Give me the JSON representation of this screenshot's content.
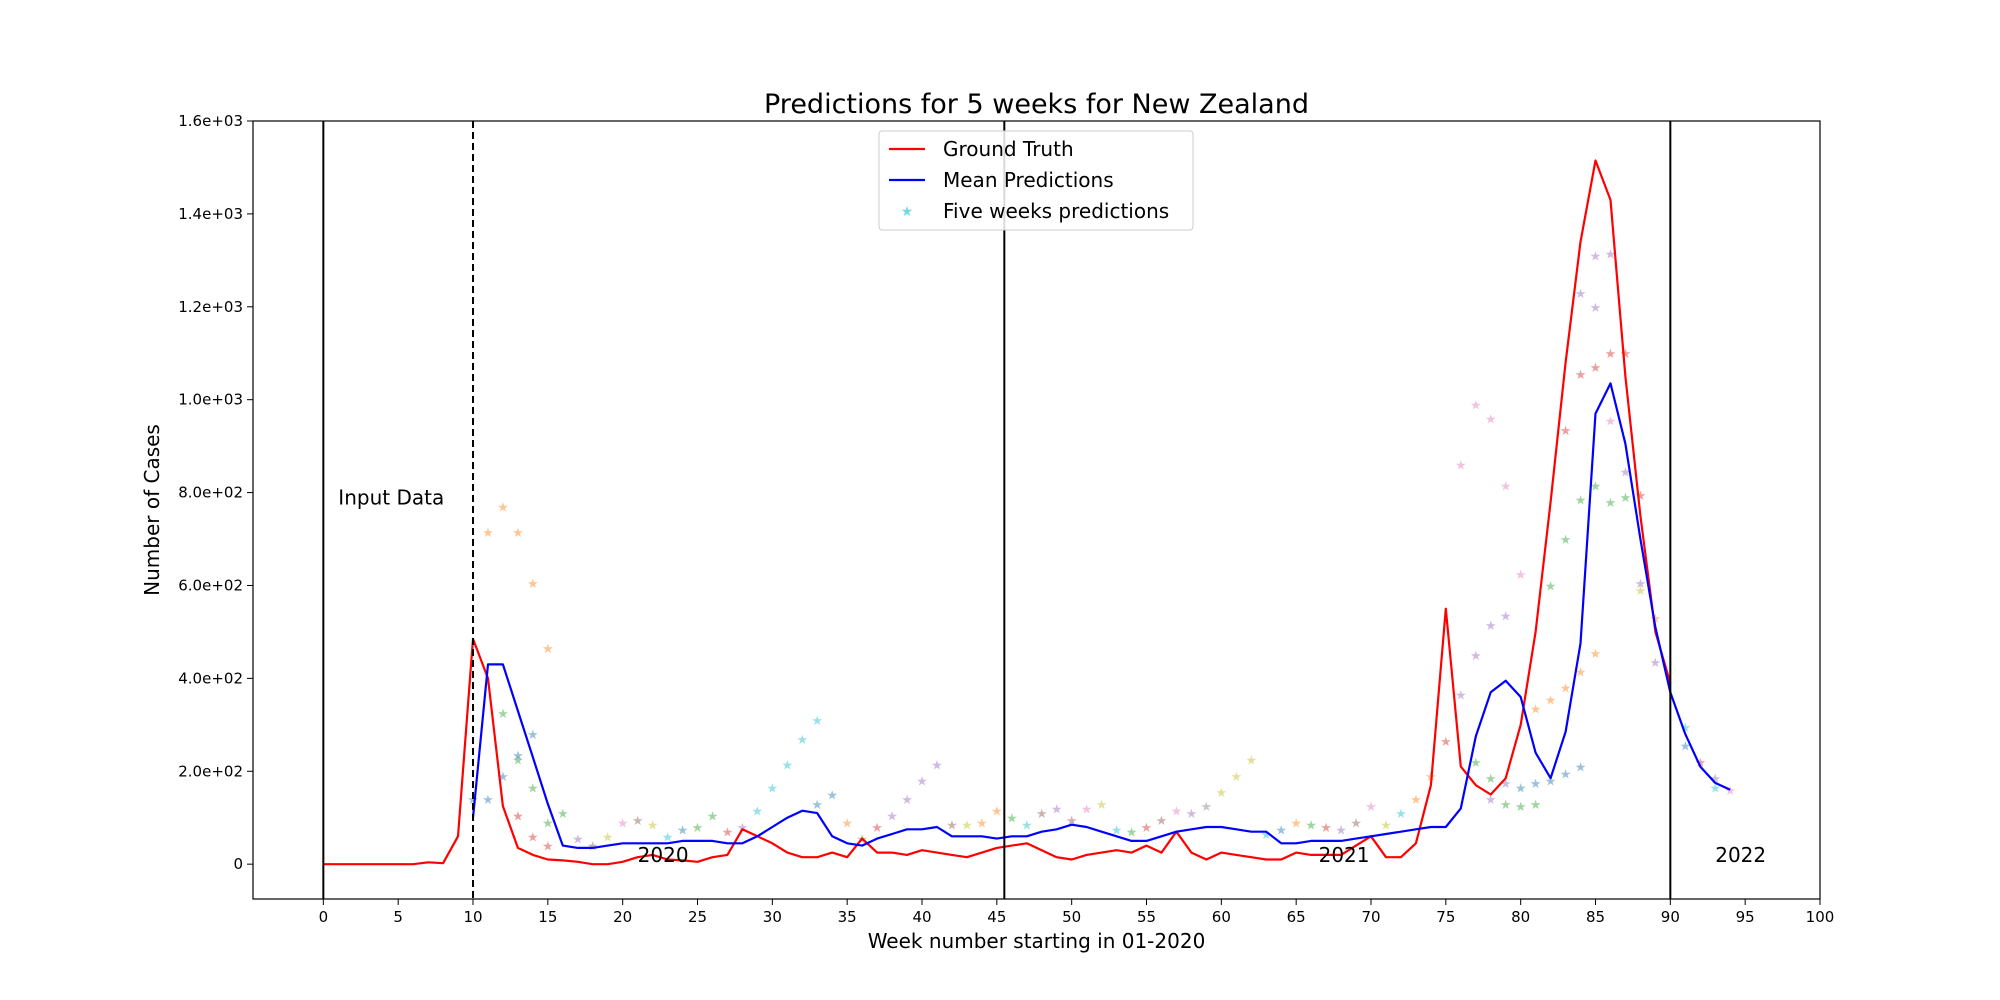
{
  "chart_data": {
    "type": "line",
    "title": "Predictions for 5 weeks for New Zealand",
    "xlabel": "Week number starting in 01-2020",
    "ylabel": "Number of Cases",
    "xlim": [
      -4.7,
      100
    ],
    "ylim": [
      -75,
      1600
    ],
    "x_ticks": [
      0,
      5,
      10,
      15,
      20,
      25,
      30,
      35,
      40,
      45,
      50,
      55,
      60,
      65,
      70,
      75,
      80,
      85,
      90,
      95,
      100
    ],
    "y_ticks": [
      {
        "value": 0,
        "label": "0"
      },
      {
        "value": 200,
        "label": "2.0e+02"
      },
      {
        "value": 400,
        "label": "4.0e+02"
      },
      {
        "value": 600,
        "label": "6.0e+02"
      },
      {
        "value": 800,
        "label": "8.0e+02"
      },
      {
        "value": 1000,
        "label": "1.0e+03"
      },
      {
        "value": 1200,
        "label": "1.2e+03"
      },
      {
        "value": 1400,
        "label": "1.4e+03"
      },
      {
        "value": 1600,
        "label": "1.6e+03"
      }
    ],
    "grid": false,
    "legend": "upper-center",
    "series": [
      {
        "name": "Ground Truth",
        "color": "#ff0000",
        "x": [
          0,
          1,
          2,
          3,
          4,
          5,
          6,
          7,
          8,
          9,
          10,
          11,
          12,
          13,
          14,
          15,
          16,
          17,
          18,
          19,
          20,
          21,
          22,
          23,
          24,
          25,
          26,
          27,
          28,
          29,
          30,
          31,
          32,
          33,
          34,
          35,
          36,
          37,
          38,
          39,
          40,
          41,
          42,
          43,
          44,
          45,
          46,
          47,
          48,
          49,
          50,
          51,
          52,
          53,
          54,
          55,
          56,
          57,
          58,
          59,
          60,
          61,
          62,
          63,
          64,
          65,
          66,
          67,
          68,
          69,
          70,
          71,
          72,
          73,
          74,
          75,
          76,
          77,
          78,
          79,
          80,
          81,
          82,
          83,
          84,
          85,
          86,
          87,
          88,
          89,
          90
        ],
        "y": [
          0,
          0,
          0,
          0,
          0,
          0,
          0,
          4,
          2,
          60,
          485,
          400,
          125,
          35,
          20,
          10,
          8,
          5,
          0,
          0,
          5,
          15,
          20,
          10,
          8,
          5,
          15,
          20,
          75,
          60,
          45,
          25,
          15,
          15,
          25,
          15,
          55,
          25,
          25,
          20,
          30,
          25,
          20,
          15,
          25,
          35,
          40,
          45,
          30,
          15,
          10,
          20,
          25,
          30,
          25,
          40,
          25,
          70,
          25,
          10,
          25,
          20,
          15,
          10,
          10,
          25,
          20,
          20,
          20,
          40,
          60,
          15,
          15,
          45,
          170,
          550,
          210,
          170,
          150,
          185,
          300,
          500,
          780,
          1080,
          1340,
          1515,
          1430,
          1050,
          750,
          500,
          390
        ]
      },
      {
        "name": "Mean Predictions",
        "color": "#0000ff",
        "x": [
          10,
          11,
          12,
          13,
          14,
          15,
          16,
          17,
          18,
          19,
          20,
          21,
          22,
          23,
          24,
          25,
          26,
          27,
          28,
          29,
          30,
          31,
          32,
          33,
          34,
          35,
          36,
          37,
          38,
          39,
          40,
          41,
          42,
          43,
          44,
          45,
          46,
          47,
          48,
          49,
          50,
          51,
          52,
          53,
          54,
          55,
          56,
          57,
          58,
          59,
          60,
          61,
          62,
          63,
          64,
          65,
          66,
          67,
          68,
          69,
          70,
          71,
          72,
          73,
          74,
          75,
          76,
          77,
          78,
          79,
          80,
          81,
          82,
          83,
          84,
          85,
          86,
          87,
          88,
          89,
          90,
          91,
          92,
          93,
          94
        ],
        "y": [
          100,
          430,
          430,
          330,
          230,
          130,
          40,
          35,
          35,
          40,
          45,
          45,
          45,
          45,
          50,
          50,
          50,
          45,
          45,
          60,
          80,
          100,
          115,
          110,
          60,
          45,
          40,
          55,
          65,
          75,
          75,
          80,
          60,
          60,
          60,
          55,
          60,
          60,
          70,
          75,
          85,
          80,
          70,
          60,
          50,
          50,
          60,
          70,
          75,
          80,
          80,
          75,
          70,
          70,
          45,
          45,
          50,
          50,
          50,
          55,
          60,
          65,
          70,
          75,
          80,
          80,
          120,
          275,
          370,
          395,
          360,
          240,
          185,
          285,
          475,
          970,
          1035,
          905,
          700,
          510,
          370,
          280,
          210,
          175,
          160
        ]
      }
    ],
    "scatter": {
      "name": "Five weeks predictions",
      "points": [
        {
          "x": 11,
          "y": 715,
          "color": "#ff7f0e"
        },
        {
          "x": 12,
          "y": 770,
          "color": "#ff7f0e"
        },
        {
          "x": 13,
          "y": 715,
          "color": "#ff7f0e"
        },
        {
          "x": 14,
          "y": 605,
          "color": "#ff7f0e"
        },
        {
          "x": 15,
          "y": 465,
          "color": "#ff7f0e"
        },
        {
          "x": 12,
          "y": 325,
          "color": "#2ca02c"
        },
        {
          "x": 13,
          "y": 225,
          "color": "#2ca02c"
        },
        {
          "x": 14,
          "y": 165,
          "color": "#2ca02c"
        },
        {
          "x": 15,
          "y": 90,
          "color": "#2ca02c"
        },
        {
          "x": 16,
          "y": 110,
          "color": "#2ca02c"
        },
        {
          "x": 10,
          "y": 140,
          "color": "#1f77b4"
        },
        {
          "x": 11,
          "y": 140,
          "color": "#1f77b4"
        },
        {
          "x": 12,
          "y": 190,
          "color": "#1f77b4"
        },
        {
          "x": 13,
          "y": 235,
          "color": "#1f77b4"
        },
        {
          "x": 14,
          "y": 280,
          "color": "#1f77b4"
        },
        {
          "x": 13,
          "y": 105,
          "color": "#d62728"
        },
        {
          "x": 14,
          "y": 60,
          "color": "#d62728"
        },
        {
          "x": 15,
          "y": 40,
          "color": "#d62728"
        },
        {
          "x": 17,
          "y": 55,
          "color": "#9467bd"
        },
        {
          "x": 18,
          "y": 40,
          "color": "#8c564b"
        },
        {
          "x": 19,
          "y": 60,
          "color": "#bcbd22"
        },
        {
          "x": 20,
          "y": 90,
          "color": "#e377c2"
        },
        {
          "x": 21,
          "y": 95,
          "color": "#8c564b"
        },
        {
          "x": 22,
          "y": 85,
          "color": "#bcbd22"
        },
        {
          "x": 23,
          "y": 60,
          "color": "#17becf"
        },
        {
          "x": 24,
          "y": 75,
          "color": "#1f77b4"
        },
        {
          "x": 25,
          "y": 80,
          "color": "#2ca02c"
        },
        {
          "x": 26,
          "y": 105,
          "color": "#2ca02c"
        },
        {
          "x": 27,
          "y": 70,
          "color": "#d62728"
        },
        {
          "x": 28,
          "y": 80,
          "color": "#9467bd"
        },
        {
          "x": 29,
          "y": 115,
          "color": "#17becf"
        },
        {
          "x": 30,
          "y": 165,
          "color": "#17becf"
        },
        {
          "x": 31,
          "y": 215,
          "color": "#17becf"
        },
        {
          "x": 32,
          "y": 270,
          "color": "#17becf"
        },
        {
          "x": 33,
          "y": 310,
          "color": "#17becf"
        },
        {
          "x": 33,
          "y": 130,
          "color": "#1f77b4"
        },
        {
          "x": 34,
          "y": 150,
          "color": "#1f77b4"
        },
        {
          "x": 35,
          "y": 90,
          "color": "#ff7f0e"
        },
        {
          "x": 36,
          "y": 55,
          "color": "#2ca02c"
        },
        {
          "x": 37,
          "y": 80,
          "color": "#d62728"
        },
        {
          "x": 38,
          "y": 105,
          "color": "#9467bd"
        },
        {
          "x": 39,
          "y": 140,
          "color": "#9467bd"
        },
        {
          "x": 40,
          "y": 180,
          "color": "#9467bd"
        },
        {
          "x": 41,
          "y": 215,
          "color": "#9467bd"
        },
        {
          "x": 42,
          "y": 85,
          "color": "#8c564b"
        },
        {
          "x": 43,
          "y": 85,
          "color": "#bcbd22"
        },
        {
          "x": 44,
          "y": 90,
          "color": "#ff7f0e"
        },
        {
          "x": 45,
          "y": 115,
          "color": "#ff7f0e"
        },
        {
          "x": 46,
          "y": 100,
          "color": "#2ca02c"
        },
        {
          "x": 47,
          "y": 85,
          "color": "#17becf"
        },
        {
          "x": 48,
          "y": 110,
          "color": "#8c564b"
        },
        {
          "x": 49,
          "y": 120,
          "color": "#9467bd"
        },
        {
          "x": 50,
          "y": 95,
          "color": "#8c564b"
        },
        {
          "x": 51,
          "y": 120,
          "color": "#e377c2"
        },
        {
          "x": 52,
          "y": 130,
          "color": "#bcbd22"
        },
        {
          "x": 53,
          "y": 75,
          "color": "#17becf"
        },
        {
          "x": 54,
          "y": 70,
          "color": "#2ca02c"
        },
        {
          "x": 55,
          "y": 80,
          "color": "#d62728"
        },
        {
          "x": 56,
          "y": 95,
          "color": "#8c564b"
        },
        {
          "x": 57,
          "y": 115,
          "color": "#e377c2"
        },
        {
          "x": 58,
          "y": 110,
          "color": "#9467bd"
        },
        {
          "x": 59,
          "y": 125,
          "color": "#7f7f7f"
        },
        {
          "x": 60,
          "y": 155,
          "color": "#bcbd22"
        },
        {
          "x": 61,
          "y": 190,
          "color": "#bcbd22"
        },
        {
          "x": 62,
          "y": 225,
          "color": "#bcbd22"
        },
        {
          "x": 63,
          "y": 65,
          "color": "#17becf"
        },
        {
          "x": 64,
          "y": 75,
          "color": "#1f77b4"
        },
        {
          "x": 65,
          "y": 90,
          "color": "#ff7f0e"
        },
        {
          "x": 66,
          "y": 85,
          "color": "#2ca02c"
        },
        {
          "x": 67,
          "y": 80,
          "color": "#d62728"
        },
        {
          "x": 68,
          "y": 75,
          "color": "#9467bd"
        },
        {
          "x": 69,
          "y": 90,
          "color": "#8c564b"
        },
        {
          "x": 70,
          "y": 125,
          "color": "#e377c2"
        },
        {
          "x": 71,
          "y": 85,
          "color": "#bcbd22"
        },
        {
          "x": 72,
          "y": 110,
          "color": "#17becf"
        },
        {
          "x": 73,
          "y": 140,
          "color": "#ff7f0e"
        },
        {
          "x": 74,
          "y": 190,
          "color": "#ff7f0e"
        },
        {
          "x": 75,
          "y": 265,
          "color": "#d62728"
        },
        {
          "x": 76,
          "y": 860,
          "color": "#e377c2"
        },
        {
          "x": 77,
          "y": 990,
          "color": "#e377c2"
        },
        {
          "x": 78,
          "y": 960,
          "color": "#e377c2"
        },
        {
          "x": 79,
          "y": 815,
          "color": "#e377c2"
        },
        {
          "x": 80,
          "y": 625,
          "color": "#e377c2"
        },
        {
          "x": 76,
          "y": 365,
          "color": "#9467bd"
        },
        {
          "x": 77,
          "y": 450,
          "color": "#9467bd"
        },
        {
          "x": 78,
          "y": 515,
          "color": "#9467bd"
        },
        {
          "x": 79,
          "y": 535,
          "color": "#9467bd"
        },
        {
          "x": 77,
          "y": 220,
          "color": "#2ca02c"
        },
        {
          "x": 78,
          "y": 185,
          "color": "#2ca02c"
        },
        {
          "x": 79,
          "y": 130,
          "color": "#2ca02c"
        },
        {
          "x": 80,
          "y": 125,
          "color": "#2ca02c"
        },
        {
          "x": 81,
          "y": 130,
          "color": "#2ca02c"
        },
        {
          "x": 78,
          "y": 140,
          "color": "#9467bd"
        },
        {
          "x": 79,
          "y": 175,
          "color": "#9467bd"
        },
        {
          "x": 80,
          "y": 165,
          "color": "#1f77b4"
        },
        {
          "x": 81,
          "y": 175,
          "color": "#1f77b4"
        },
        {
          "x": 82,
          "y": 180,
          "color": "#1f77b4"
        },
        {
          "x": 83,
          "y": 195,
          "color": "#1f77b4"
        },
        {
          "x": 84,
          "y": 210,
          "color": "#1f77b4"
        },
        {
          "x": 81,
          "y": 335,
          "color": "#ff7f0e"
        },
        {
          "x": 82,
          "y": 355,
          "color": "#ff7f0e"
        },
        {
          "x": 83,
          "y": 380,
          "color": "#ff7f0e"
        },
        {
          "x": 84,
          "y": 415,
          "color": "#ff7f0e"
        },
        {
          "x": 85,
          "y": 455,
          "color": "#ff7f0e"
        },
        {
          "x": 82,
          "y": 600,
          "color": "#2ca02c"
        },
        {
          "x": 83,
          "y": 700,
          "color": "#2ca02c"
        },
        {
          "x": 84,
          "y": 785,
          "color": "#2ca02c"
        },
        {
          "x": 85,
          "y": 815,
          "color": "#2ca02c"
        },
        {
          "x": 86,
          "y": 780,
          "color": "#2ca02c"
        },
        {
          "x": 83,
          "y": 935,
          "color": "#d62728"
        },
        {
          "x": 84,
          "y": 1055,
          "color": "#d62728"
        },
        {
          "x": 85,
          "y": 1070,
          "color": "#d62728"
        },
        {
          "x": 86,
          "y": 1100,
          "color": "#d62728"
        },
        {
          "x": 87,
          "y": 1100,
          "color": "#d62728"
        },
        {
          "x": 84,
          "y": 1230,
          "color": "#9467bd"
        },
        {
          "x": 85,
          "y": 1310,
          "color": "#9467bd"
        },
        {
          "x": 86,
          "y": 1315,
          "color": "#9467bd"
        },
        {
          "x": 85,
          "y": 1200,
          "color": "#9467bd"
        },
        {
          "x": 86,
          "y": 955,
          "color": "#e377c2"
        },
        {
          "x": 87,
          "y": 845,
          "color": "#9467bd"
        },
        {
          "x": 88,
          "y": 795,
          "color": "#d62728"
        },
        {
          "x": 87,
          "y": 790,
          "color": "#2ca02c"
        },
        {
          "x": 88,
          "y": 605,
          "color": "#9467bd"
        },
        {
          "x": 88,
          "y": 590,
          "color": "#bcbd22"
        },
        {
          "x": 89,
          "y": 530,
          "color": "#ff7f0e"
        },
        {
          "x": 89,
          "y": 435,
          "color": "#9467bd"
        },
        {
          "x": 91,
          "y": 295,
          "color": "#17becf"
        },
        {
          "x": 91,
          "y": 255,
          "color": "#1f77b4"
        },
        {
          "x": 92,
          "y": 220,
          "color": "#d62728"
        },
        {
          "x": 93,
          "y": 185,
          "color": "#9467bd"
        },
        {
          "x": 93,
          "y": 165,
          "color": "#17becf"
        },
        {
          "x": 94,
          "y": 160,
          "color": "#e377c2"
        }
      ]
    },
    "vertical_lines": [
      {
        "x": 0,
        "style": "solid"
      },
      {
        "x": 10,
        "style": "dashed"
      },
      {
        "x": 45.5,
        "style": "solid"
      },
      {
        "x": 90,
        "style": "solid"
      }
    ],
    "annotations": [
      {
        "text": "Input Data",
        "x": 1,
        "y": 770
      },
      {
        "text": "2020",
        "x": 21,
        "y": 0
      },
      {
        "text": "2021",
        "x": 66.5,
        "y": 0
      },
      {
        "text": "2022",
        "x": 93,
        "y": 0
      }
    ]
  }
}
